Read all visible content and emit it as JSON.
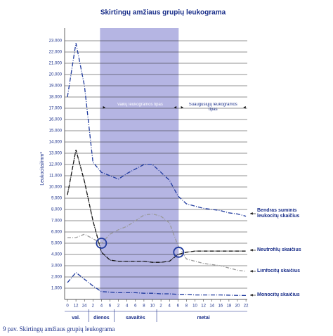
{
  "chart_data": {
    "type": "line",
    "title": "Skirtingų amžiaus grupių leukograma",
    "y_label": "Leukocitai/mm³",
    "caption": "9 pav.   Skirtingų amžiaus grupių leukograma",
    "annotations": [
      "Vaikų leukogramos tipas",
      "Suaugusiųjų leukogramos tipas"
    ],
    "x_group_labels": [
      "val.",
      "dienos",
      "savaitės",
      "metai"
    ],
    "categories": [
      "0",
      "12",
      "24",
      "2",
      "4",
      "6",
      "2",
      "4",
      "6",
      "8",
      "10",
      "2",
      "4",
      "6",
      "8",
      "10",
      "12",
      "14",
      "16",
      "18",
      "20",
      "22"
    ],
    "ylim": [
      0,
      23000
    ],
    "yticks": [
      {
        "value": 1000,
        "label": "1.000"
      },
      {
        "value": 2000,
        "label": "2.000"
      },
      {
        "value": 3000,
        "label": "3.000"
      },
      {
        "value": 4000,
        "label": "4.000"
      },
      {
        "value": 5000,
        "label": "5.000"
      },
      {
        "value": 6000,
        "label": "6.000"
      },
      {
        "value": 7000,
        "label": "7.000"
      },
      {
        "value": 8000,
        "label": "8.000"
      },
      {
        "value": 9000,
        "label": "9.000"
      },
      {
        "value": 10000,
        "label": "10.000"
      },
      {
        "value": 11000,
        "label": "11.000"
      },
      {
        "value": 12000,
        "label": "12.000"
      },
      {
        "value": 13000,
        "label": "13.000"
      },
      {
        "value": 14000,
        "label": "14.000"
      },
      {
        "value": 15000,
        "label": "15.000"
      },
      {
        "value": 16000,
        "label": "16.000"
      },
      {
        "value": 17000,
        "label": "17.000"
      },
      {
        "value": 18000,
        "label": "18.000"
      },
      {
        "value": 19000,
        "label": "19.000"
      },
      {
        "value": 20000,
        "label": "20.000"
      },
      {
        "value": 21000,
        "label": "21.000"
      },
      {
        "value": 22000,
        "label": "22.000"
      },
      {
        "value": 23000,
        "label": "23.000"
      }
    ],
    "grid": true,
    "series": [
      {
        "name": "Bendras suminis leukocitų skaičius",
        "color": "#1f3a9e",
        "dash": "6 2 1 2",
        "values": [
          18000,
          22800,
          19000,
          12200,
          11300,
          11000,
          10700,
          11200,
          11600,
          12000,
          12000,
          11300,
          10600,
          9200,
          8500,
          8300,
          8100,
          8000,
          7900,
          7700,
          7600,
          7400
        ]
      },
      {
        "name": "Neutrofilų skaičius",
        "color": "#111111",
        "dash": "6 1 1 1",
        "values": [
          9300,
          13300,
          10500,
          7000,
          4200,
          3500,
          3400,
          3400,
          3400,
          3400,
          3300,
          3300,
          3400,
          4000,
          4200,
          4300,
          4300,
          4300,
          4300,
          4300,
          4300,
          4300
        ]
      },
      {
        "name": "Limfocitų skaičius",
        "color": "#999999",
        "dash": "5 2 1 2",
        "values": [
          5500,
          5500,
          5800,
          5400,
          5000,
          5800,
          6200,
          6500,
          7000,
          7500,
          7600,
          7400,
          6800,
          4800,
          3600,
          3400,
          3200,
          3100,
          3000,
          2800,
          2600,
          2500
        ]
      },
      {
        "name": "Monocitų skaičius",
        "color": "#1f3a9e",
        "dash": "6 2 1 2",
        "values": [
          1500,
          2400,
          1800,
          1200,
          700,
          650,
          600,
          600,
          600,
          550,
          550,
          500,
          500,
          450,
          450,
          400,
          400,
          400,
          400,
          380,
          360,
          350
        ]
      }
    ]
  }
}
